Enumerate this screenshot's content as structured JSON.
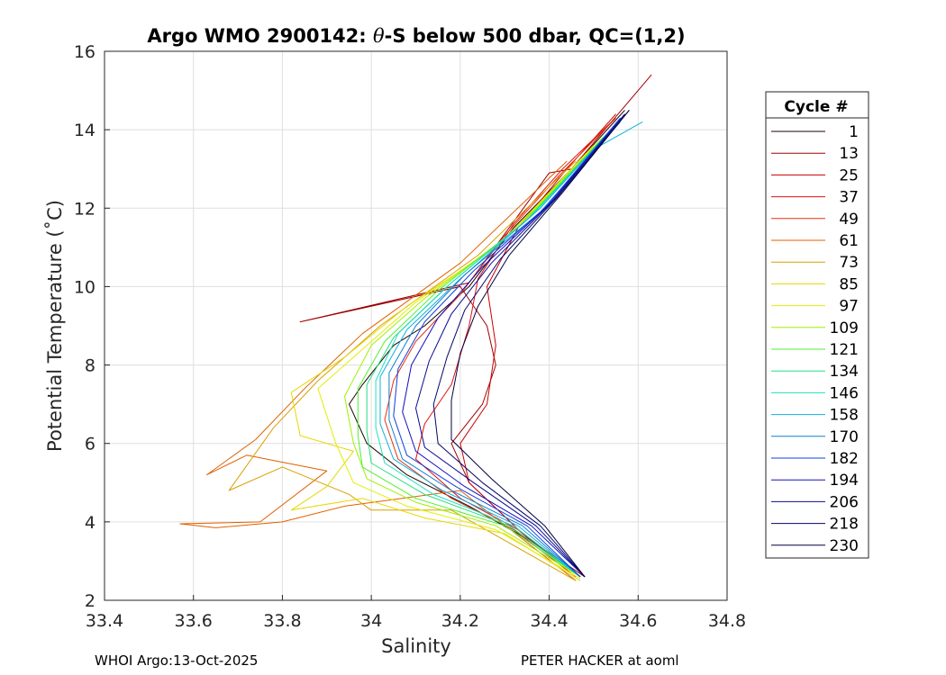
{
  "chart_data": {
    "type": "line",
    "title_prefix": "Argo WMO 2900142: ",
    "title_theta": "θ",
    "title_suffix": "-S below 500 dbar,  QC=(1,2)",
    "xlabel": "Salinity",
    "ylabel": "Potential Temperature (˚C)",
    "xlim": [
      33.4,
      34.8
    ],
    "ylim": [
      2,
      16
    ],
    "xticks": [
      33.4,
      33.6,
      33.8,
      34.0,
      34.2,
      34.4,
      34.6,
      34.8
    ],
    "xtick_labels": [
      "33.4",
      "33.6",
      "33.8",
      "34",
      "34.2",
      "34.4",
      "34.6",
      "34.8"
    ],
    "yticks": [
      2,
      4,
      6,
      8,
      10,
      12,
      14,
      16
    ],
    "ytick_labels": [
      "2",
      "4",
      "6",
      "8",
      "10",
      "12",
      "14",
      "16"
    ],
    "grid": true,
    "legend": {
      "title": "Cycle #",
      "placement": "right-outside",
      "entries": [
        {
          "label": "1",
          "color": "#1a0000"
        },
        {
          "label": "13",
          "color": "#a00000"
        },
        {
          "label": "25",
          "color": "#c80000"
        },
        {
          "label": "37",
          "color": "#e01010"
        },
        {
          "label": "49",
          "color": "#e83010"
        },
        {
          "label": "61",
          "color": "#e06000"
        },
        {
          "label": "73",
          "color": "#d8a000"
        },
        {
          "label": "85",
          "color": "#e8d800"
        },
        {
          "label": "97",
          "color": "#e0f000"
        },
        {
          "label": "109",
          "color": "#a0f000"
        },
        {
          "label": "121",
          "color": "#50f030"
        },
        {
          "label": "134",
          "color": "#20e080"
        },
        {
          "label": "146",
          "color": "#20e0c0"
        },
        {
          "label": "158",
          "color": "#10b0e0"
        },
        {
          "label": "170",
          "color": "#1080d0"
        },
        {
          "label": "182",
          "color": "#1040e0"
        },
        {
          "label": "194",
          "color": "#1010c0"
        },
        {
          "label": "206",
          "color": "#0a0a90"
        },
        {
          "label": "218",
          "color": "#05056a"
        },
        {
          "label": "230",
          "color": "#000040"
        }
      ]
    },
    "series": [
      {
        "name": "1",
        "color": "#1a0000",
        "points": [
          [
            34.57,
            14.5
          ],
          [
            34.45,
            13.0
          ],
          [
            34.32,
            11.5
          ],
          [
            34.22,
            10.0
          ],
          [
            34.12,
            9.0
          ],
          [
            34.05,
            8.5
          ],
          [
            33.98,
            7.5
          ],
          [
            33.95,
            7.0
          ],
          [
            33.99,
            6.0
          ],
          [
            34.08,
            5.2
          ],
          [
            34.22,
            4.4
          ],
          [
            34.36,
            3.5
          ],
          [
            34.47,
            2.6
          ]
        ]
      },
      {
        "name": "13",
        "color": "#a00000",
        "points": [
          [
            34.63,
            15.4
          ],
          [
            34.45,
            13.0
          ],
          [
            34.4,
            12.9
          ],
          [
            34.22,
            10.1
          ],
          [
            33.84,
            9.1
          ],
          [
            34.2,
            10.0
          ],
          [
            34.26,
            9.0
          ],
          [
            34.28,
            8.0
          ],
          [
            34.25,
            7.0
          ],
          [
            34.18,
            6.0
          ],
          [
            34.22,
            5.0
          ],
          [
            34.35,
            3.6
          ],
          [
            34.48,
            2.6
          ]
        ]
      },
      {
        "name": "25",
        "color": "#c80000",
        "points": [
          [
            34.55,
            14.4
          ],
          [
            34.44,
            13.0
          ],
          [
            34.33,
            11.5
          ],
          [
            34.26,
            10.0
          ],
          [
            34.28,
            8.5
          ],
          [
            34.26,
            7.0
          ],
          [
            34.2,
            6.0
          ],
          [
            34.22,
            5.0
          ],
          [
            34.34,
            3.7
          ],
          [
            34.47,
            2.6
          ]
        ]
      },
      {
        "name": "37",
        "color": "#e01010",
        "points": [
          [
            34.54,
            14.2
          ],
          [
            34.43,
            13.0
          ],
          [
            34.32,
            11.6
          ],
          [
            34.24,
            10.2
          ],
          [
            34.22,
            9.0
          ],
          [
            34.18,
            7.5
          ],
          [
            34.12,
            6.5
          ],
          [
            34.1,
            5.6
          ],
          [
            34.2,
            4.6
          ],
          [
            34.33,
            3.8
          ],
          [
            34.47,
            2.6
          ]
        ]
      },
      {
        "name": "49",
        "color": "#e83010",
        "points": [
          [
            34.55,
            14.3
          ],
          [
            34.42,
            12.8
          ],
          [
            34.3,
            11.3
          ],
          [
            34.2,
            9.8
          ],
          [
            34.1,
            8.6
          ],
          [
            34.05,
            7.6
          ],
          [
            34.03,
            6.6
          ],
          [
            34.06,
            5.6
          ],
          [
            34.18,
            4.6
          ],
          [
            34.32,
            3.8
          ],
          [
            34.46,
            2.6
          ]
        ]
      },
      {
        "name": "61",
        "color": "#e06000",
        "points": [
          [
            34.44,
            13.2
          ],
          [
            34.2,
            10.6
          ],
          [
            33.98,
            8.8
          ],
          [
            33.85,
            7.4
          ],
          [
            33.74,
            6.1
          ],
          [
            33.63,
            5.2
          ],
          [
            33.72,
            5.7
          ],
          [
            33.9,
            5.3
          ],
          [
            33.75,
            4.0
          ],
          [
            33.57,
            3.95
          ],
          [
            33.65,
            3.85
          ],
          [
            33.8,
            4.0
          ],
          [
            33.94,
            4.4
          ],
          [
            34.2,
            4.8
          ],
          [
            34.46,
            2.5
          ]
        ]
      },
      {
        "name": "73",
        "color": "#d8a000",
        "points": [
          [
            34.46,
            13.2
          ],
          [
            34.24,
            10.8
          ],
          [
            34.02,
            9.0
          ],
          [
            33.88,
            7.6
          ],
          [
            33.78,
            6.4
          ],
          [
            33.68,
            4.8
          ],
          [
            33.8,
            5.4
          ],
          [
            33.95,
            4.7
          ],
          [
            34.0,
            4.3
          ],
          [
            34.18,
            4.3
          ],
          [
            34.46,
            2.5
          ]
        ]
      },
      {
        "name": "85",
        "color": "#e8d800",
        "points": [
          [
            34.48,
            13.3
          ],
          [
            34.28,
            11.0
          ],
          [
            34.08,
            9.5
          ],
          [
            33.94,
            8.2
          ],
          [
            33.82,
            7.3
          ],
          [
            33.84,
            6.2
          ],
          [
            33.96,
            5.8
          ],
          [
            33.9,
            4.9
          ],
          [
            33.82,
            4.3
          ],
          [
            33.98,
            4.6
          ],
          [
            34.12,
            4.1
          ],
          [
            34.3,
            3.7
          ],
          [
            34.47,
            2.5
          ]
        ]
      },
      {
        "name": "97",
        "color": "#e0f000",
        "points": [
          [
            34.5,
            13.6
          ],
          [
            34.3,
            11.2
          ],
          [
            34.1,
            9.6
          ],
          [
            33.98,
            8.4
          ],
          [
            33.88,
            7.4
          ],
          [
            33.92,
            6.0
          ],
          [
            33.96,
            5.0
          ],
          [
            34.08,
            4.4
          ],
          [
            34.28,
            3.8
          ],
          [
            34.47,
            2.55
          ]
        ]
      },
      {
        "name": "109",
        "color": "#a0f000",
        "points": [
          [
            34.52,
            13.8
          ],
          [
            34.32,
            11.4
          ],
          [
            34.12,
            9.7
          ],
          [
            34.0,
            8.5
          ],
          [
            33.94,
            7.2
          ],
          [
            33.96,
            6.0
          ],
          [
            33.99,
            5.1
          ],
          [
            34.1,
            4.5
          ],
          [
            34.28,
            3.9
          ],
          [
            34.47,
            2.6
          ]
        ]
      },
      {
        "name": "121",
        "color": "#50f030",
        "points": [
          [
            34.53,
            13.9
          ],
          [
            34.34,
            11.6
          ],
          [
            34.15,
            9.9
          ],
          [
            34.03,
            8.6
          ],
          [
            33.97,
            7.4
          ],
          [
            33.97,
            6.2
          ],
          [
            33.98,
            5.4
          ],
          [
            34.1,
            4.6
          ],
          [
            34.3,
            3.9
          ],
          [
            34.47,
            2.6
          ]
        ]
      },
      {
        "name": "134",
        "color": "#20e080",
        "points": [
          [
            34.54,
            14.0
          ],
          [
            34.35,
            11.7
          ],
          [
            34.17,
            10.0
          ],
          [
            34.05,
            8.7
          ],
          [
            33.99,
            7.5
          ],
          [
            33.99,
            6.3
          ],
          [
            34.0,
            5.5
          ],
          [
            34.12,
            4.7
          ],
          [
            34.31,
            3.9
          ],
          [
            34.47,
            2.6
          ]
        ]
      },
      {
        "name": "146",
        "color": "#20e0c0",
        "points": [
          [
            34.55,
            14.1
          ],
          [
            34.36,
            11.8
          ],
          [
            34.18,
            10.1
          ],
          [
            34.06,
            8.8
          ],
          [
            34.01,
            7.6
          ],
          [
            34.01,
            6.4
          ],
          [
            34.03,
            5.5
          ],
          [
            34.14,
            4.7
          ],
          [
            34.32,
            3.9
          ],
          [
            34.47,
            2.6
          ]
        ]
      },
      {
        "name": "158",
        "color": "#10b0e0",
        "points": [
          [
            34.61,
            14.2
          ],
          [
            34.5,
            13.5
          ],
          [
            34.38,
            12.0
          ],
          [
            34.2,
            10.2
          ],
          [
            34.08,
            8.9
          ],
          [
            34.02,
            7.7
          ],
          [
            34.02,
            6.5
          ],
          [
            34.05,
            5.6
          ],
          [
            34.16,
            4.8
          ],
          [
            34.33,
            3.9
          ],
          [
            34.47,
            2.6
          ]
        ]
      },
      {
        "name": "170",
        "color": "#1080d0",
        "points": [
          [
            34.56,
            14.2
          ],
          [
            34.38,
            11.9
          ],
          [
            34.21,
            10.3
          ],
          [
            34.1,
            9.0
          ],
          [
            34.04,
            7.8
          ],
          [
            34.04,
            6.6
          ],
          [
            34.07,
            5.6
          ],
          [
            34.18,
            4.8
          ],
          [
            34.34,
            3.9
          ],
          [
            34.47,
            2.6
          ]
        ]
      },
      {
        "name": "182",
        "color": "#1040e0",
        "points": [
          [
            34.56,
            14.3
          ],
          [
            34.39,
            12.0
          ],
          [
            34.23,
            10.4
          ],
          [
            34.12,
            9.1
          ],
          [
            34.06,
            7.9
          ],
          [
            34.05,
            6.7
          ],
          [
            34.08,
            5.7
          ],
          [
            34.19,
            4.9
          ],
          [
            34.35,
            3.9
          ],
          [
            34.47,
            2.6
          ]
        ]
      },
      {
        "name": "194",
        "color": "#1010c0",
        "points": [
          [
            34.57,
            14.4
          ],
          [
            34.4,
            12.1
          ],
          [
            34.25,
            10.5
          ],
          [
            34.15,
            9.2
          ],
          [
            34.09,
            8.0
          ],
          [
            34.07,
            6.8
          ],
          [
            34.1,
            5.8
          ],
          [
            34.21,
            4.9
          ],
          [
            34.36,
            3.9
          ],
          [
            34.48,
            2.6
          ]
        ]
      },
      {
        "name": "206",
        "color": "#0a0a90",
        "points": [
          [
            34.57,
            14.4
          ],
          [
            34.41,
            12.2
          ],
          [
            34.27,
            10.6
          ],
          [
            34.18,
            9.3
          ],
          [
            34.13,
            8.1
          ],
          [
            34.1,
            6.9
          ],
          [
            34.12,
            5.9
          ],
          [
            34.23,
            5.0
          ],
          [
            34.37,
            3.9
          ],
          [
            34.48,
            2.6
          ]
        ]
      },
      {
        "name": "218",
        "color": "#05056a",
        "points": [
          [
            34.58,
            14.5
          ],
          [
            34.42,
            12.3
          ],
          [
            34.29,
            10.7
          ],
          [
            34.21,
            9.4
          ],
          [
            34.17,
            8.2
          ],
          [
            34.14,
            7.0
          ],
          [
            34.15,
            6.0
          ],
          [
            34.25,
            5.0
          ],
          [
            34.38,
            3.9
          ],
          [
            34.48,
            2.6
          ]
        ]
      },
      {
        "name": "230",
        "color": "#000040",
        "points": [
          [
            34.58,
            14.5
          ],
          [
            34.43,
            12.4
          ],
          [
            34.31,
            10.8
          ],
          [
            34.24,
            9.5
          ],
          [
            34.2,
            8.3
          ],
          [
            34.18,
            7.1
          ],
          [
            34.18,
            6.1
          ],
          [
            34.27,
            5.1
          ],
          [
            34.39,
            3.9
          ],
          [
            34.48,
            2.6
          ]
        ]
      }
    ]
  },
  "footer": {
    "left": "WHOI Argo:13-Oct-2025",
    "right": "PETER HACKER at aoml"
  }
}
